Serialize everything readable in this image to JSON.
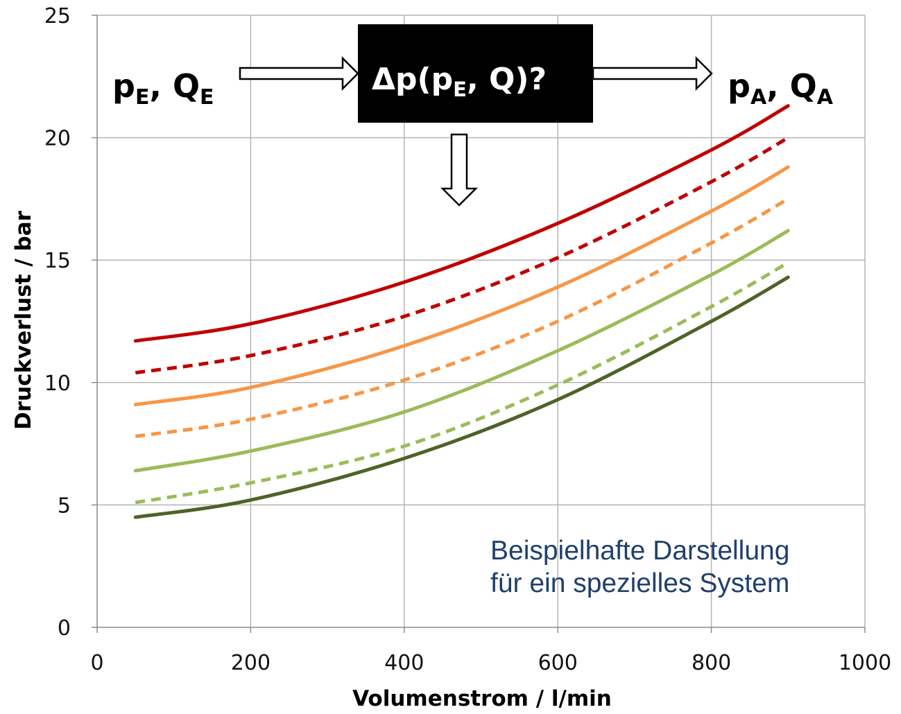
{
  "chart_data": {
    "type": "line",
    "xlabel": "Volumenstrom / l/min",
    "ylabel": "Druckverlust / bar",
    "xlim": [
      0,
      1000
    ],
    "ylim": [
      0,
      25
    ],
    "xticks": [
      "0",
      "200",
      "400",
      "600",
      "800",
      "1000"
    ],
    "yticks": [
      "0",
      "5",
      "10",
      "15",
      "20",
      "25"
    ],
    "grid": true,
    "legend": "none",
    "x": [
      50,
      200,
      400,
      600,
      800,
      900
    ],
    "series": [
      {
        "color": "#c00000",
        "style": "solid",
        "values": [
          11.7,
          12.4,
          14.1,
          16.5,
          19.5,
          21.3
        ]
      },
      {
        "color": "#c00000",
        "style": "dashed",
        "values": [
          10.4,
          11.1,
          12.7,
          15.1,
          18.2,
          20.0
        ]
      },
      {
        "color": "#f79646",
        "style": "solid",
        "values": [
          9.1,
          9.8,
          11.5,
          13.9,
          17.0,
          18.8
        ]
      },
      {
        "color": "#f79646",
        "style": "dashed",
        "values": [
          7.8,
          8.5,
          10.1,
          12.5,
          15.7,
          17.5
        ]
      },
      {
        "color": "#9bbb59",
        "style": "solid",
        "values": [
          6.4,
          7.2,
          8.8,
          11.3,
          14.4,
          16.2
        ]
      },
      {
        "color": "#9bbb59",
        "style": "dashed",
        "values": [
          5.1,
          5.9,
          7.4,
          9.9,
          13.1,
          14.9
        ]
      },
      {
        "color": "#4f6228",
        "style": "solid",
        "values": [
          4.5,
          5.2,
          6.9,
          9.3,
          12.5,
          14.3
        ]
      }
    ],
    "annotations": {
      "inlet": {
        "main1": "p",
        "sub1": "E",
        "sep": ", ",
        "main2": "Q",
        "sub2": "E"
      },
      "box": {
        "pre": "Δp(p",
        "sub": "E",
        "post": ", Q)?"
      },
      "outlet": {
        "main1": "p",
        "sub1": "A",
        "sep": ", ",
        "main2": "Q",
        "sub2": "A"
      },
      "note_lines": [
        "Beispielhafte Darstellung",
        "für ein spezielles System"
      ]
    }
  }
}
